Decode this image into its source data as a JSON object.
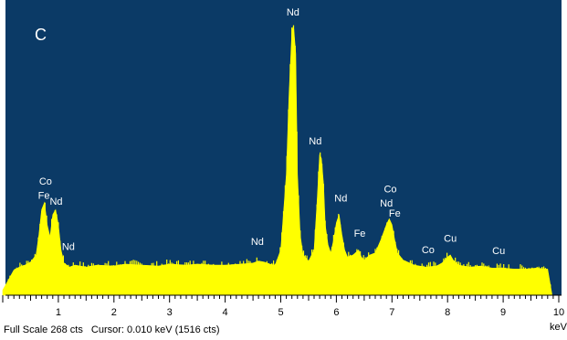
{
  "panel_label": "C",
  "status": {
    "full_scale": "Full Scale 268 cts",
    "cursor": "Cursor: 0.010 keV (1516 cts)"
  },
  "colors": {
    "background": "#0b3a66",
    "spectrum": "#ffff00",
    "axis": "#000000",
    "label": "#ffffff"
  },
  "chart_data": {
    "type": "area",
    "title": "",
    "xlabel": "keV",
    "ylabel": "",
    "xlim": [
      0,
      10
    ],
    "ylim": [
      0,
      268
    ],
    "grid": false,
    "x_ticks": [
      "1",
      "2",
      "3",
      "4",
      "5",
      "6",
      "7",
      "8",
      "9",
      "10"
    ],
    "series": [
      {
        "x": [
          0.0,
          0.1,
          0.2,
          0.3,
          0.4,
          0.5,
          0.6,
          0.65,
          0.7,
          0.75,
          0.8,
          0.85,
          0.9,
          0.95,
          1.0,
          1.05,
          1.1,
          1.2,
          1.3,
          1.5,
          1.7,
          2.0,
          2.2,
          2.5,
          2.8,
          3.0,
          3.3,
          3.5,
          3.8,
          4.0,
          4.3,
          4.5,
          4.6,
          4.7,
          4.8,
          4.9,
          5.0,
          5.1,
          5.15,
          5.2,
          5.23,
          5.27,
          5.3,
          5.35,
          5.4,
          5.5,
          5.6,
          5.65,
          5.7,
          5.73,
          5.77,
          5.8,
          5.85,
          5.9,
          5.95,
          6.0,
          6.05,
          6.1,
          6.15,
          6.2,
          6.3,
          6.4,
          6.45,
          6.5,
          6.6,
          6.7,
          6.8,
          6.9,
          6.95,
          7.0,
          7.05,
          7.1,
          7.2,
          7.4,
          7.6,
          7.8,
          7.9,
          8.0,
          8.05,
          8.1,
          8.2,
          8.4,
          8.6,
          8.8,
          9.0,
          9.2,
          9.4,
          9.6,
          9.8,
          9.88
        ],
        "y": [
          5,
          15,
          25,
          28,
          30,
          33,
          40,
          60,
          85,
          92,
          70,
          58,
          80,
          85,
          70,
          45,
          32,
          28,
          30,
          28,
          30,
          29,
          31,
          30,
          29,
          31,
          30,
          31,
          30,
          30,
          31,
          32,
          34,
          33,
          31,
          30,
          45,
          120,
          200,
          262,
          268,
          240,
          120,
          60,
          40,
          34,
          45,
          90,
          140,
          136,
          110,
          70,
          50,
          42,
          55,
          72,
          80,
          60,
          45,
          38,
          40,
          45,
          38,
          35,
          40,
          42,
          55,
          70,
          76,
          70,
          55,
          42,
          35,
          30,
          28,
          29,
          32,
          38,
          40,
          35,
          30,
          28,
          29,
          27,
          27,
          26,
          26,
          27,
          26,
          0
        ]
      }
    ],
    "peak_labels": [
      {
        "text": "Co",
        "x": 0.77,
        "y": 110
      },
      {
        "text": "Fe",
        "x": 0.74,
        "y": 96
      },
      {
        "text": "Nd",
        "x": 0.96,
        "y": 90
      },
      {
        "text": "Nd",
        "x": 1.18,
        "y": 45
      },
      {
        "text": "Nd",
        "x": 4.58,
        "y": 50
      },
      {
        "text": "Nd",
        "x": 5.22,
        "y": 278
      },
      {
        "text": "Nd",
        "x": 5.62,
        "y": 150
      },
      {
        "text": "Nd",
        "x": 6.08,
        "y": 93
      },
      {
        "text": "Fe",
        "x": 6.42,
        "y": 58
      },
      {
        "text": "Co",
        "x": 6.97,
        "y": 102
      },
      {
        "text": "Nd",
        "x": 6.9,
        "y": 88
      },
      {
        "text": "Fe",
        "x": 7.05,
        "y": 78
      },
      {
        "text": "Co",
        "x": 7.65,
        "y": 42
      },
      {
        "text": "Cu",
        "x": 8.05,
        "y": 53
      },
      {
        "text": "Cu",
        "x": 8.92,
        "y": 41
      }
    ]
  }
}
